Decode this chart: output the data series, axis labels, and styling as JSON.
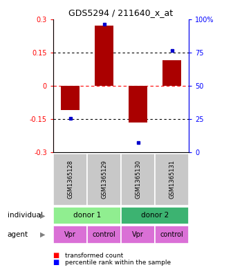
{
  "title": "GDS5294 / 211640_x_at",
  "samples": [
    "GSM1365128",
    "GSM1365129",
    "GSM1365130",
    "GSM1365131"
  ],
  "bar_values": [
    -0.11,
    0.27,
    -0.165,
    0.115
  ],
  "percentile_values": [
    -0.148,
    0.278,
    -0.255,
    0.158
  ],
  "bar_color": "#aa0000",
  "dot_color": "#0000cc",
  "ylim": [
    -0.3,
    0.3
  ],
  "yticks_left": [
    -0.3,
    -0.15,
    0.0,
    0.15,
    0.3
  ],
  "ytick_labels_left": [
    "-0.3",
    "-0.15",
    "0",
    "0.15",
    "0.3"
  ],
  "ytick_labels_right": [
    "0",
    "25",
    "50",
    "75",
    "100%"
  ],
  "donor_1_label": "donor 1",
  "donor_2_label": "donor 2",
  "donor_1_color": "#90ee90",
  "donor_2_color": "#3cb371",
  "agent_labels": [
    "Vpr",
    "control",
    "Vpr",
    "control"
  ],
  "agent_color": "#da70d6",
  "sample_bg_color": "#c8c8c8",
  "individual_label": "individual",
  "agent_label": "agent",
  "legend_red_label": "transformed count",
  "legend_blue_label": "percentile rank within the sample",
  "bar_width": 0.55
}
